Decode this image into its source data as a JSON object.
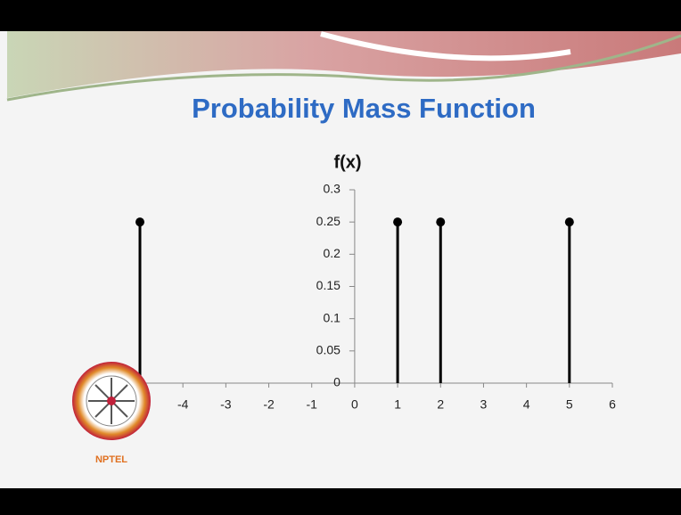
{
  "chart_data": {
    "type": "stem",
    "title": "Probability Mass Function",
    "ylabel": "f(x)",
    "x": [
      -5,
      1,
      2,
      5
    ],
    "values": [
      0.25,
      0.25,
      0.25,
      0.25
    ],
    "color": "#000000",
    "xlim": [
      -5,
      6
    ],
    "xticks": [
      -4,
      -3,
      -2,
      -1,
      0,
      1,
      2,
      3,
      4,
      5,
      6
    ],
    "ylim": [
      0,
      0.3
    ],
    "yticks": [
      0,
      0.05,
      0.1,
      0.15,
      0.2,
      0.25,
      0.3
    ]
  },
  "logo": {
    "text": "NPTEL"
  }
}
